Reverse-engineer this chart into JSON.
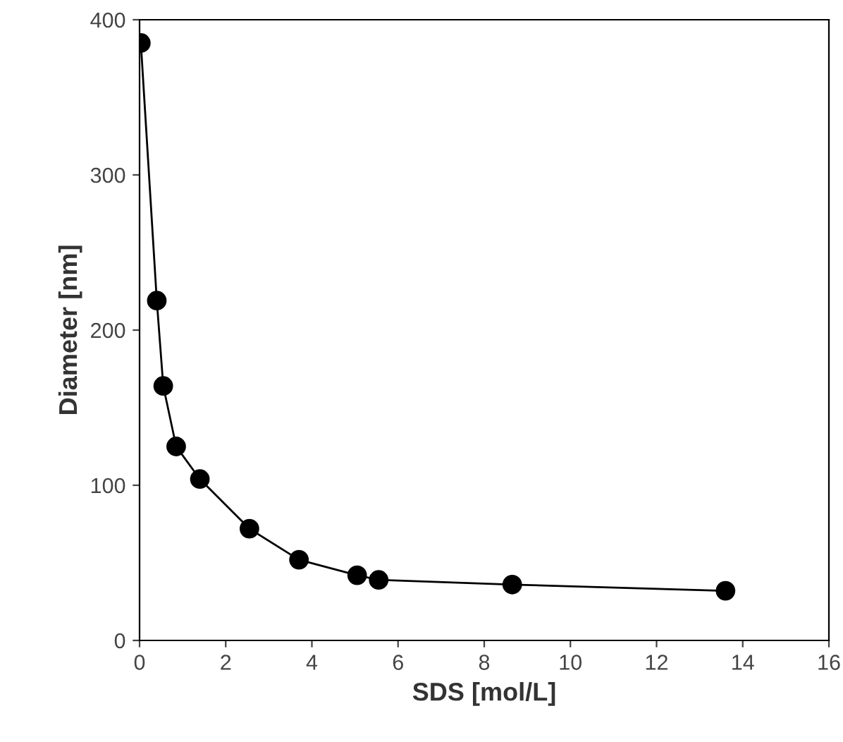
{
  "chart_data": {
    "type": "line",
    "xlabel": "SDS [mol/L]",
    "ylabel": "Diameter [nm]",
    "x": [
      0.03,
      0.4,
      0.55,
      0.85,
      1.4,
      2.55,
      3.7,
      5.05,
      5.55,
      8.65,
      13.6
    ],
    "series": [
      {
        "color": "#000000",
        "values": [
          385,
          219,
          164,
          125,
          104,
          72,
          52,
          42,
          39,
          36,
          32
        ]
      }
    ],
    "xlim": [
      0,
      16
    ],
    "xticks": [
      0,
      2,
      4,
      6,
      8,
      10,
      12,
      14,
      16
    ],
    "ylim": [
      0,
      400
    ],
    "yticks": [
      0,
      100,
      200,
      300,
      400
    ],
    "marker": "circle",
    "line_style": "solid"
  }
}
